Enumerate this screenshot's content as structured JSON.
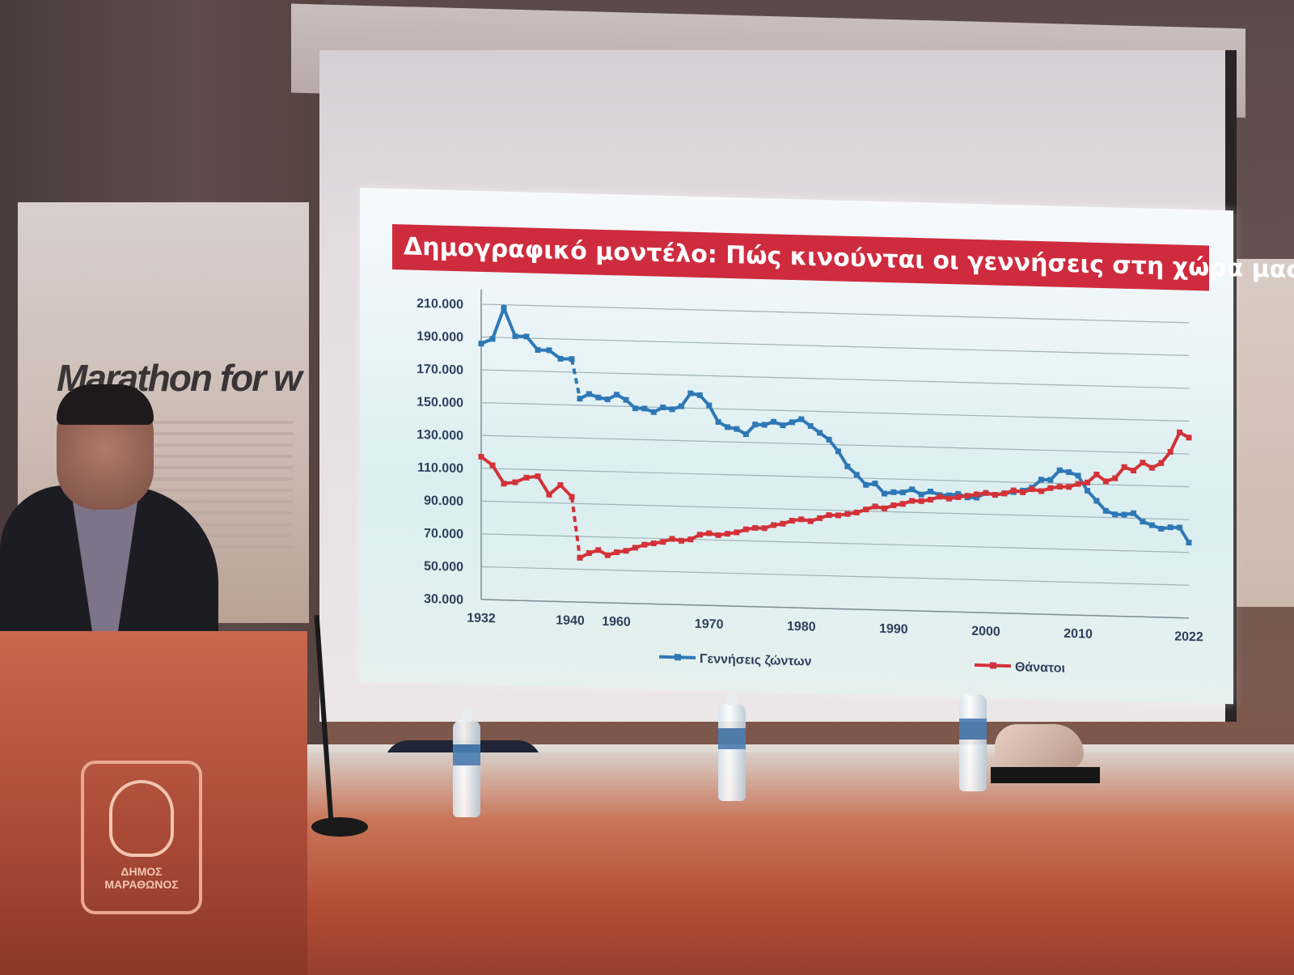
{
  "banner": {
    "text": "Marathon for w"
  },
  "podium": {
    "logo_line1": "ΔΗΜΟΣ",
    "logo_line2": "ΜΑΡΑΘΩΝΟΣ"
  },
  "slide": {
    "title": "Δημογραφικό μοντέλο: Πώς κινούνται οι γεννήσεις στη χώρα μας;"
  },
  "colors": {
    "births": "#2e78b6",
    "deaths": "#d23238",
    "title_bg": "#cf2b3e",
    "axis_text": "#2f3f5c"
  },
  "chart_data": {
    "type": "line",
    "title": "Δημογραφικό μοντέλο: Πώς κινούνται οι γεννήσεις στη χώρα μας;",
    "ylim": [
      30000,
      210000
    ],
    "y_ticks": [
      "210.000",
      "190.000",
      "170.000",
      "150.000",
      "130.000",
      "110.000",
      "90.000",
      "70.000",
      "50.000",
      "30.000"
    ],
    "x_ticks": [
      "1932",
      "1940",
      "1960",
      "1970",
      "1980",
      "1990",
      "2000",
      "2010",
      "2022"
    ],
    "grid": true,
    "legend_position": "bottom",
    "x_note": "1941–1955 gap shown as dashed segment",
    "series": [
      {
        "name": "Γεννήσεις ζώντων",
        "color": "#2e78b6",
        "points": [
          [
            1932,
            186000
          ],
          [
            1933,
            189000
          ],
          [
            1934,
            208000
          ],
          [
            1935,
            191000
          ],
          [
            1936,
            191000
          ],
          [
            1937,
            183000
          ],
          [
            1938,
            183000
          ],
          [
            1939,
            178000
          ],
          [
            1940,
            178000
          ],
          [
            1956,
            154000
          ],
          [
            1957,
            157000
          ],
          [
            1958,
            155000
          ],
          [
            1959,
            154000
          ],
          [
            1960,
            157000
          ],
          [
            1961,
            154000
          ],
          [
            1962,
            149000
          ],
          [
            1963,
            149000
          ],
          [
            1964,
            147000
          ],
          [
            1965,
            150000
          ],
          [
            1966,
            149000
          ],
          [
            1967,
            151000
          ],
          [
            1968,
            159000
          ],
          [
            1969,
            158000
          ],
          [
            1970,
            152000
          ],
          [
            1971,
            142000
          ],
          [
            1972,
            139000
          ],
          [
            1973,
            138000
          ],
          [
            1974,
            135000
          ],
          [
            1975,
            141000
          ],
          [
            1976,
            141000
          ],
          [
            1977,
            143000
          ],
          [
            1978,
            141000
          ],
          [
            1979,
            143000
          ],
          [
            1980,
            145000
          ],
          [
            1981,
            141000
          ],
          [
            1982,
            137000
          ],
          [
            1983,
            133000
          ],
          [
            1984,
            126000
          ],
          [
            1985,
            117000
          ],
          [
            1986,
            112000
          ],
          [
            1987,
            106000
          ],
          [
            1988,
            107000
          ],
          [
            1989,
            101000
          ],
          [
            1990,
            102000
          ],
          [
            1991,
            102000
          ],
          [
            1992,
            104000
          ],
          [
            1993,
            101000
          ],
          [
            1994,
            103000
          ],
          [
            1995,
            101000
          ],
          [
            1996,
            101000
          ],
          [
            1997,
            102000
          ],
          [
            1998,
            100000
          ],
          [
            1999,
            100000
          ],
          [
            2000,
            103000
          ],
          [
            2001,
            102000
          ],
          [
            2002,
            103000
          ],
          [
            2003,
            104000
          ],
          [
            2004,
            105000
          ],
          [
            2005,
            107000
          ],
          [
            2006,
            112000
          ],
          [
            2007,
            112000
          ],
          [
            2008,
            118000
          ],
          [
            2009,
            117000
          ],
          [
            2010,
            115000
          ],
          [
            2011,
            106000
          ],
          [
            2012,
            100000
          ],
          [
            2013,
            94000
          ],
          [
            2014,
            92000
          ],
          [
            2015,
            92000
          ],
          [
            2016,
            93000
          ],
          [
            2017,
            88000
          ],
          [
            2018,
            86000
          ],
          [
            2019,
            84000
          ],
          [
            2020,
            85000
          ],
          [
            2021,
            85000
          ],
          [
            2022,
            76000
          ]
        ]
      },
      {
        "name": "Θάνατοι",
        "color": "#d23238",
        "points": [
          [
            1932,
            117000
          ],
          [
            1933,
            112000
          ],
          [
            1934,
            101000
          ],
          [
            1935,
            102000
          ],
          [
            1936,
            105000
          ],
          [
            1937,
            106000
          ],
          [
            1938,
            95000
          ],
          [
            1939,
            101000
          ],
          [
            1940,
            94000
          ],
          [
            1956,
            57000
          ],
          [
            1957,
            60000
          ],
          [
            1958,
            62000
          ],
          [
            1959,
            59000
          ],
          [
            1960,
            61000
          ],
          [
            1961,
            62000
          ],
          [
            1962,
            64000
          ],
          [
            1963,
            66000
          ],
          [
            1964,
            67000
          ],
          [
            1965,
            68000
          ],
          [
            1966,
            70000
          ],
          [
            1967,
            69000
          ],
          [
            1968,
            70000
          ],
          [
            1969,
            73000
          ],
          [
            1970,
            74000
          ],
          [
            1971,
            73000
          ],
          [
            1972,
            74000
          ],
          [
            1973,
            75000
          ],
          [
            1974,
            77000
          ],
          [
            1975,
            78000
          ],
          [
            1976,
            78000
          ],
          [
            1977,
            80000
          ],
          [
            1978,
            81000
          ],
          [
            1979,
            83000
          ],
          [
            1980,
            84000
          ],
          [
            1981,
            83000
          ],
          [
            1982,
            85000
          ],
          [
            1983,
            87000
          ],
          [
            1984,
            87000
          ],
          [
            1985,
            88000
          ],
          [
            1986,
            89000
          ],
          [
            1987,
            91000
          ],
          [
            1988,
            93000
          ],
          [
            1989,
            92000
          ],
          [
            1990,
            94000
          ],
          [
            1991,
            95000
          ],
          [
            1992,
            97000
          ],
          [
            1993,
            97000
          ],
          [
            1994,
            98000
          ],
          [
            1995,
            100000
          ],
          [
            1996,
            99000
          ],
          [
            1997,
            100000
          ],
          [
            1998,
            101000
          ],
          [
            1999,
            102000
          ],
          [
            2000,
            103000
          ],
          [
            2001,
            102000
          ],
          [
            2002,
            103000
          ],
          [
            2003,
            105000
          ],
          [
            2004,
            104000
          ],
          [
            2005,
            106000
          ],
          [
            2006,
            105000
          ],
          [
            2007,
            107000
          ],
          [
            2008,
            108000
          ],
          [
            2009,
            108000
          ],
          [
            2010,
            110000
          ],
          [
            2011,
            111000
          ],
          [
            2012,
            116000
          ],
          [
            2013,
            112000
          ],
          [
            2014,
            114000
          ],
          [
            2015,
            121000
          ],
          [
            2016,
            119000
          ],
          [
            2017,
            124000
          ],
          [
            2018,
            121000
          ],
          [
            2019,
            124000
          ],
          [
            2020,
            131000
          ],
          [
            2021,
            143000
          ],
          [
            2022,
            140000
          ]
        ]
      }
    ]
  }
}
